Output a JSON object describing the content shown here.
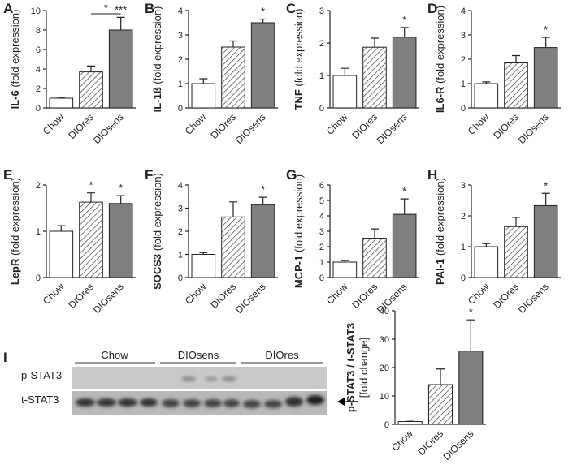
{
  "chart_data": [
    {
      "type": "bar",
      "panel": "A",
      "ylabel_bold": "IL-6",
      "ylabel": "(fold expression)",
      "categories": [
        "Chow",
        "DIOres",
        "DIOsens"
      ],
      "values": [
        1.0,
        3.7,
        8.0
      ],
      "errors": [
        0.1,
        0.6,
        1.3
      ],
      "fills": [
        "#ffffff",
        "#ffffff",
        "#7f7f7f"
      ],
      "hatch": [
        false,
        true,
        false
      ],
      "ylim": [
        0,
        10
      ],
      "yticks": [
        0,
        2,
        4,
        6,
        8,
        10
      ],
      "stars": [
        {
          "category": "DIOsens",
          "text": "***"
        }
      ],
      "bracket": {
        "from": "DIOres",
        "to": "DIOsens",
        "text": "*"
      }
    },
    {
      "type": "bar",
      "panel": "B",
      "ylabel_bold": "IL-1ß",
      "ylabel": "(fold expression)",
      "categories": [
        "Chow",
        "DIOres",
        "DIOsens"
      ],
      "values": [
        1.0,
        2.5,
        3.5
      ],
      "errors": [
        0.2,
        0.25,
        0.15
      ],
      "fills": [
        "#ffffff",
        "#ffffff",
        "#7f7f7f"
      ],
      "hatch": [
        false,
        true,
        false
      ],
      "ylim": [
        0,
        4
      ],
      "yticks": [
        0,
        1,
        2,
        3,
        4
      ],
      "stars": [
        {
          "category": "DIOsens",
          "text": "*"
        }
      ]
    },
    {
      "type": "bar",
      "panel": "C",
      "ylabel_bold": "TNF",
      "ylabel": "(fold expression)",
      "categories": [
        "Chow",
        "DIOres",
        "DIOsens"
      ],
      "values": [
        1.0,
        1.87,
        2.18
      ],
      "errors": [
        0.22,
        0.28,
        0.3
      ],
      "fills": [
        "#ffffff",
        "#ffffff",
        "#7f7f7f"
      ],
      "hatch": [
        false,
        true,
        false
      ],
      "ylim": [
        0,
        3
      ],
      "yticks": [
        0,
        1,
        2,
        3
      ],
      "stars": [
        {
          "category": "DIOsens",
          "text": "*"
        }
      ]
    },
    {
      "type": "bar",
      "panel": "D",
      "ylabel_bold": "IL6-R",
      "ylabel": "(fold expression)",
      "categories": [
        "Chow",
        "DIOres",
        "DIOsens"
      ],
      "values": [
        1.0,
        1.85,
        2.48
      ],
      "errors": [
        0.07,
        0.3,
        0.42
      ],
      "fills": [
        "#ffffff",
        "#ffffff",
        "#7f7f7f"
      ],
      "hatch": [
        false,
        true,
        false
      ],
      "ylim": [
        0,
        4
      ],
      "yticks": [
        0,
        1,
        2,
        3,
        4
      ],
      "stars": [
        {
          "category": "DIOsens",
          "text": "*"
        }
      ]
    },
    {
      "type": "bar",
      "panel": "E",
      "ylabel_bold": "LepR",
      "ylabel": "(fold expression)",
      "categories": [
        "Chow",
        "DIOres",
        "DIOsens"
      ],
      "values": [
        1.0,
        1.63,
        1.6
      ],
      "errors": [
        0.12,
        0.2,
        0.17
      ],
      "fills": [
        "#ffffff",
        "#ffffff",
        "#7f7f7f"
      ],
      "hatch": [
        false,
        true,
        false
      ],
      "ylim": [
        0,
        2
      ],
      "yticks": [
        0,
        1,
        2
      ],
      "stars": [
        {
          "category": "DIOres",
          "text": "*"
        },
        {
          "category": "DIOsens",
          "text": "*"
        }
      ]
    },
    {
      "type": "bar",
      "panel": "F",
      "ylabel_bold": "SOCS3",
      "ylabel": "(fold expression)",
      "categories": [
        "Chow",
        "DIOres",
        "DIOsens"
      ],
      "values": [
        1.0,
        2.62,
        3.15
      ],
      "errors": [
        0.08,
        0.65,
        0.32
      ],
      "fills": [
        "#ffffff",
        "#ffffff",
        "#7f7f7f"
      ],
      "hatch": [
        false,
        true,
        false
      ],
      "ylim": [
        0,
        4
      ],
      "yticks": [
        0,
        1,
        2,
        3,
        4
      ],
      "stars": [
        {
          "category": "DIOsens",
          "text": "*"
        }
      ]
    },
    {
      "type": "bar",
      "panel": "G",
      "ylabel_bold": "MCP-1",
      "ylabel": "(fold expression)",
      "categories": [
        "Chow",
        "DIOres",
        "DIOsens"
      ],
      "values": [
        1.0,
        2.55,
        4.1
      ],
      "errors": [
        0.1,
        0.6,
        1.0
      ],
      "fills": [
        "#ffffff",
        "#ffffff",
        "#7f7f7f"
      ],
      "hatch": [
        false,
        true,
        false
      ],
      "ylim": [
        0,
        6
      ],
      "yticks": [
        0,
        1,
        2,
        3,
        4,
        5,
        6
      ],
      "stars": [
        {
          "category": "DIOsens",
          "text": "*"
        }
      ]
    },
    {
      "type": "bar",
      "panel": "H",
      "ylabel_bold": "PAI-1",
      "ylabel": "(fold expression)",
      "categories": [
        "Chow",
        "DIOres",
        "DIOsens"
      ],
      "values": [
        1.0,
        1.65,
        2.33
      ],
      "errors": [
        0.1,
        0.3,
        0.4
      ],
      "fills": [
        "#ffffff",
        "#ffffff",
        "#7f7f7f"
      ],
      "hatch": [
        false,
        true,
        false
      ],
      "ylim": [
        0,
        3
      ],
      "yticks": [
        0,
        1,
        2,
        3
      ],
      "stars": [
        {
          "category": "DIOsens",
          "text": "*"
        }
      ]
    },
    {
      "type": "bar",
      "panel": "I",
      "ylabel_bold": "p-STAT3 / t-STAT3",
      "ylabel": "[fold change]",
      "categories": [
        "Chow",
        "DIOres",
        "DIOsens"
      ],
      "values": [
        1.0,
        14.0,
        25.8
      ],
      "errors": [
        0.5,
        5.5,
        11.0
      ],
      "fills": [
        "#ffffff",
        "#ffffff",
        "#7f7f7f"
      ],
      "hatch": [
        false,
        true,
        false
      ],
      "ylim": [
        0,
        40
      ],
      "yticks": [
        0,
        10,
        20,
        30,
        40
      ],
      "stars": [
        {
          "category": "DIOsens",
          "text": "*"
        }
      ]
    }
  ],
  "blot": {
    "groups": [
      "Chow",
      "DIOsens",
      "DIOres"
    ],
    "rows": [
      "p-STAT3",
      "t-STAT3"
    ]
  }
}
